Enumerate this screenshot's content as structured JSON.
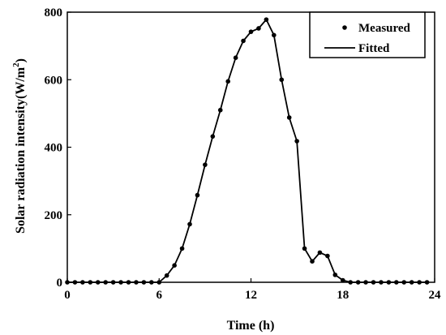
{
  "chart_data": {
    "type": "line",
    "xlabel": "Time (h)",
    "ylabel_main": "Solar radiation intensity(W/m",
    "ylabel_sup": "2",
    "ylabel_end": ")",
    "xlim": [
      0,
      24
    ],
    "ylim": [
      0,
      800
    ],
    "xticks": [
      0,
      6,
      12,
      18,
      24
    ],
    "yticks": [
      0,
      200,
      400,
      600,
      800
    ],
    "legend_position": "top-right",
    "series": [
      {
        "name": "Measured",
        "style": "markers",
        "x": [
          0,
          0.5,
          1,
          1.5,
          2,
          2.5,
          3,
          3.5,
          4,
          4.5,
          5,
          5.5,
          6,
          6.5,
          7,
          7.5,
          8,
          8.5,
          9,
          9.5,
          10,
          10.5,
          11,
          11.5,
          12,
          12.5,
          13,
          13.5,
          14,
          14.5,
          15,
          15.5,
          16,
          16.5,
          17,
          17.5,
          18,
          18.5,
          19,
          19.5,
          20,
          20.5,
          21,
          21.5,
          22,
          22.5,
          23,
          23.5
        ],
        "y": [
          0,
          0,
          0,
          0,
          0,
          0,
          0,
          0,
          0,
          0,
          0,
          0,
          0,
          20,
          50,
          100,
          172,
          258,
          348,
          432,
          510,
          595,
          665,
          715,
          742,
          752,
          778,
          732,
          600,
          488,
          418,
          100,
          62,
          88,
          78,
          22,
          6,
          0,
          0,
          0,
          0,
          0,
          0,
          0,
          0,
          0,
          0,
          0
        ]
      },
      {
        "name": "Fitted",
        "style": "line",
        "x": [
          0,
          0.5,
          1,
          1.5,
          2,
          2.5,
          3,
          3.5,
          4,
          4.5,
          5,
          5.5,
          6,
          6.5,
          7,
          7.5,
          8,
          8.5,
          9,
          9.5,
          10,
          10.5,
          11,
          11.5,
          12,
          12.5,
          13,
          13.5,
          14,
          14.5,
          15,
          15.5,
          16,
          16.5,
          17,
          17.5,
          18,
          18.5,
          19,
          19.5,
          20,
          20.5,
          21,
          21.5,
          22,
          22.5,
          23,
          23.5
        ],
        "y": [
          0,
          0,
          0,
          0,
          0,
          0,
          0,
          0,
          0,
          0,
          0,
          0,
          0,
          20,
          50,
          100,
          172,
          258,
          348,
          432,
          510,
          595,
          665,
          715,
          742,
          752,
          778,
          732,
          600,
          488,
          418,
          100,
          62,
          88,
          78,
          22,
          6,
          0,
          0,
          0,
          0,
          0,
          0,
          0,
          0,
          0,
          0,
          0
        ]
      }
    ]
  }
}
